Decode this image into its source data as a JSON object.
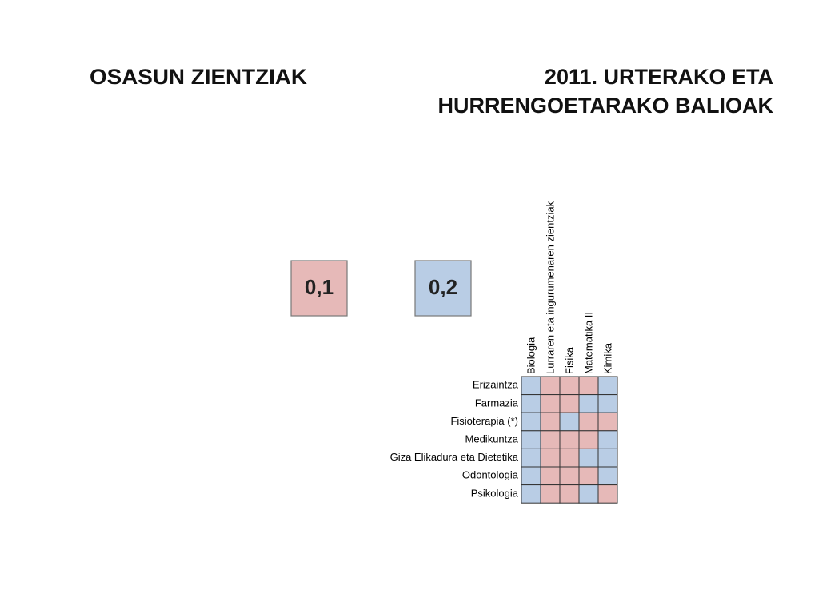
{
  "header": {
    "left_title": "OSASUN ZIENTZIAK",
    "right_title": [
      "2011. URTERAKO ETA",
      "HURRENGOETARAKO BALIOAK"
    ]
  },
  "legend": [
    {
      "label": "0,1",
      "value": 0.1,
      "color": "#e6b9b8"
    },
    {
      "label": "0,2",
      "value": 0.2,
      "color": "#b9cde5"
    }
  ],
  "table": {
    "columns": [
      "Biologia",
      "Lurraren eta ingurumenaren zientziak",
      "Fisika",
      "Matematika II",
      "Kimika"
    ],
    "rows": [
      "Erizaintza",
      "Farmazia",
      "Fisioterapia (*)",
      "Medikuntza",
      "Giza Elikadura eta Dietetika",
      "Odontologia",
      "Psikologia"
    ],
    "values": [
      [
        0.2,
        0.1,
        0.1,
        0.1,
        0.2
      ],
      [
        0.2,
        0.1,
        0.1,
        0.2,
        0.2
      ],
      [
        0.2,
        0.1,
        0.2,
        0.1,
        0.1
      ],
      [
        0.2,
        0.1,
        0.1,
        0.1,
        0.2
      ],
      [
        0.2,
        0.1,
        0.1,
        0.2,
        0.2
      ],
      [
        0.2,
        0.1,
        0.1,
        0.1,
        0.2
      ],
      [
        0.2,
        0.1,
        0.1,
        0.2,
        0.1
      ]
    ]
  }
}
